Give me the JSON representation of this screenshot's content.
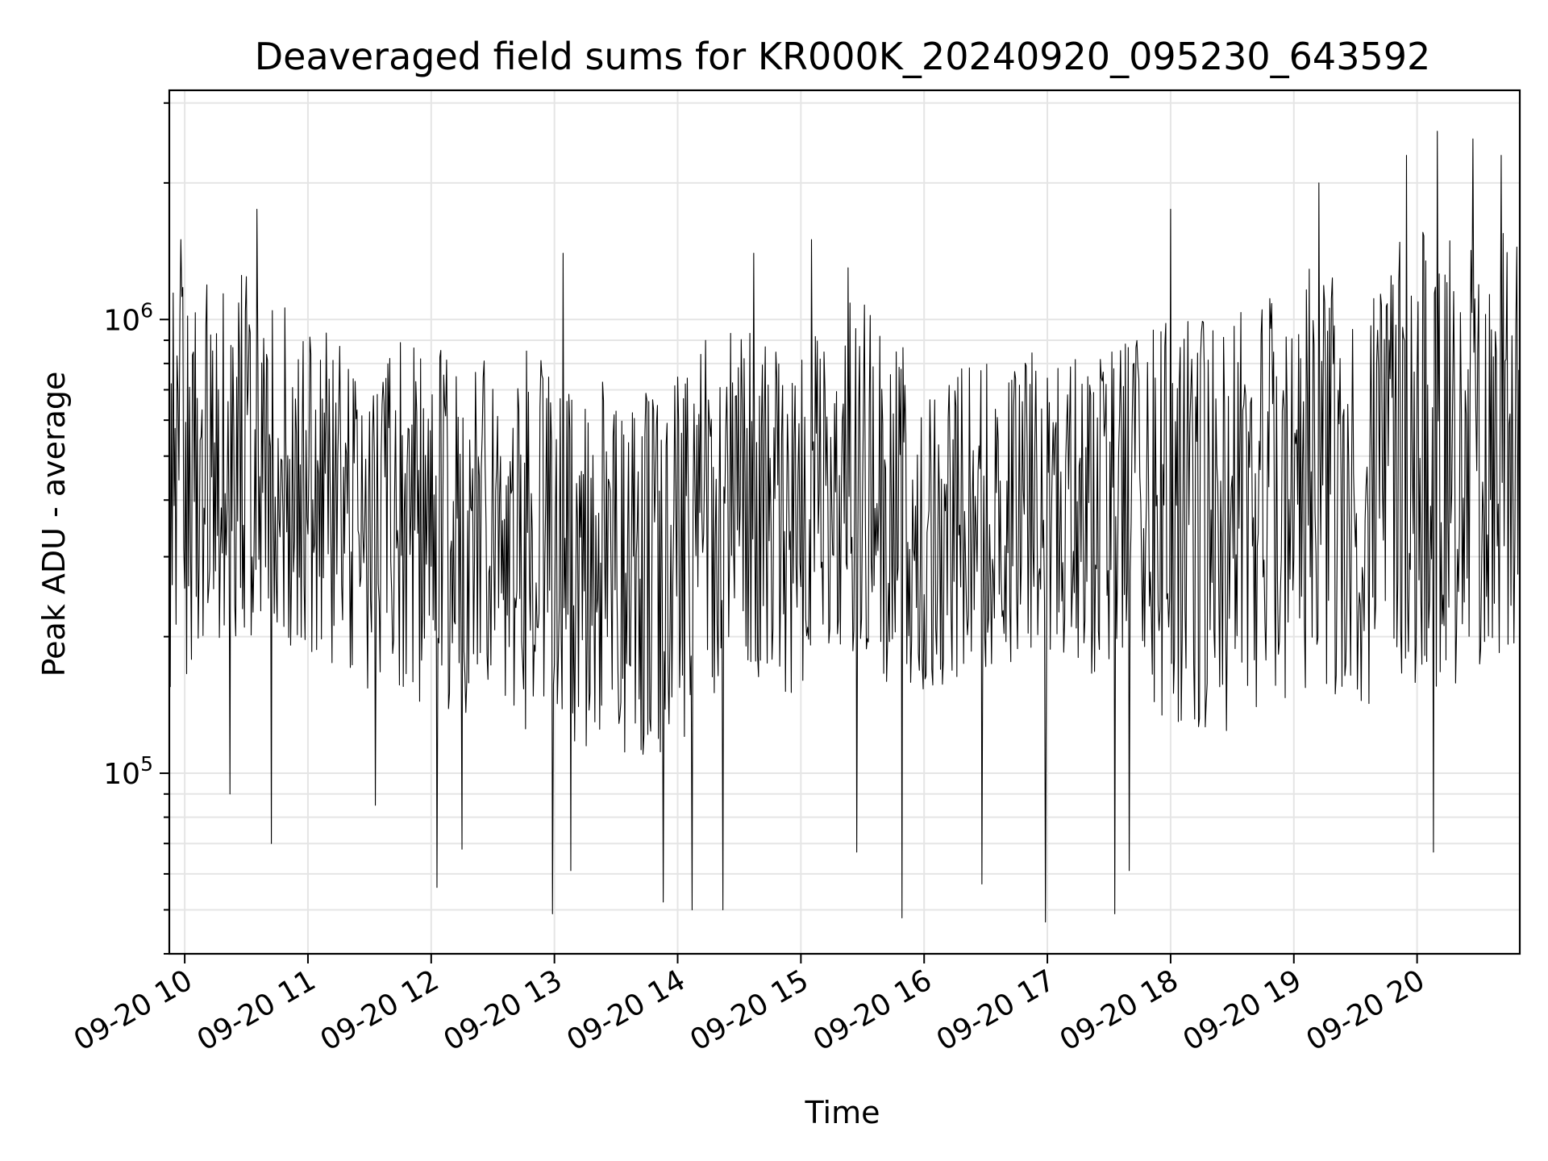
{
  "chart_data": {
    "type": "line",
    "title": "Deaveraged field sums for KR000K_20240920_095230_643592",
    "xlabel": "Time",
    "ylabel": "Peak ADU - average",
    "x_ticks": [
      "09-20 10",
      "09-20 11",
      "09-20 12",
      "09-20 13",
      "09-20 14",
      "09-20 15",
      "09-20 16",
      "09-20 17",
      "09-20 18",
      "09-20 19",
      "09-20 20"
    ],
    "y_ticks": [
      {
        "base": "10",
        "exp": "5",
        "value": 100000
      },
      {
        "base": "10",
        "exp": "6",
        "value": 1000000
      }
    ],
    "y_scale": "log",
    "ylim": [
      40000,
      3200000
    ],
    "xlim": [
      "2024-09-20 09:52:30",
      "2024-09-20 20:50:00"
    ],
    "grid": true,
    "colors": {
      "line": "#000000",
      "grid": "#e5e5e5",
      "axes": "#000000",
      "background": "#ffffff"
    },
    "series": [
      {
        "samples_per_segment": 12,
        "envelope": [
          {
            "t": "2024-09-20 09:52:30",
            "low": 150000,
            "mid": 430000,
            "high": 1200000
          },
          {
            "t": "2024-09-20 10:30:00",
            "low": 200000,
            "mid": 480000,
            "high": 1300000
          },
          {
            "t": "2024-09-20 11:00:00",
            "low": 160000,
            "mid": 400000,
            "high": 950000
          },
          {
            "t": "2024-09-20 11:30:00",
            "low": 150000,
            "mid": 430000,
            "high": 900000
          },
          {
            "t": "2024-09-20 12:00:00",
            "low": 140000,
            "mid": 380000,
            "high": 880000
          },
          {
            "t": "2024-09-20 12:30:00",
            "low": 130000,
            "mid": 330000,
            "high": 800000
          },
          {
            "t": "2024-09-20 13:00:00",
            "low": 120000,
            "mid": 320000,
            "high": 900000
          },
          {
            "t": "2024-09-20 13:30:00",
            "low": 110000,
            "mid": 300000,
            "high": 700000
          },
          {
            "t": "2024-09-20 14:00:00",
            "low": 110000,
            "mid": 300000,
            "high": 750000
          },
          {
            "t": "2024-09-20 14:30:00",
            "low": 170000,
            "mid": 470000,
            "high": 1100000
          },
          {
            "t": "2024-09-20 15:00:00",
            "low": 140000,
            "mid": 340000,
            "high": 900000
          },
          {
            "t": "2024-09-20 15:30:00",
            "low": 160000,
            "mid": 480000,
            "high": 1200000
          },
          {
            "t": "2024-09-20 16:00:00",
            "low": 150000,
            "mid": 300000,
            "high": 750000
          },
          {
            "t": "2024-09-20 16:30:00",
            "low": 170000,
            "mid": 380000,
            "high": 800000
          },
          {
            "t": "2024-09-20 17:00:00",
            "low": 180000,
            "mid": 440000,
            "high": 900000
          },
          {
            "t": "2024-09-20 17:30:00",
            "low": 150000,
            "mid": 330000,
            "high": 850000
          },
          {
            "t": "2024-09-20 18:00:00",
            "low": 130000,
            "mid": 360000,
            "high": 1000000
          },
          {
            "t": "2024-09-20 18:30:00",
            "low": 120000,
            "mid": 330000,
            "high": 1000000
          },
          {
            "t": "2024-09-20 19:00:00",
            "low": 150000,
            "mid": 500000,
            "high": 1300000
          },
          {
            "t": "2024-09-20 19:30:00",
            "low": 140000,
            "mid": 450000,
            "high": 1300000
          },
          {
            "t": "2024-09-20 20:00:00",
            "low": 150000,
            "mid": 560000,
            "high": 1600000
          },
          {
            "t": "2024-09-20 20:30:00",
            "low": 160000,
            "mid": 600000,
            "high": 1700000
          },
          {
            "t": "2024-09-20 20:50:00",
            "low": 170000,
            "mid": 550000,
            "high": 1500000
          }
        ],
        "spikes": [
          {
            "t": "2024-09-20 09:58:00",
            "value": 1500000
          },
          {
            "t": "2024-09-20 10:35:00",
            "value": 1750000
          },
          {
            "t": "2024-09-20 10:42:00",
            "value": 70000
          },
          {
            "t": "2024-09-20 10:22:00",
            "value": 90000
          },
          {
            "t": "2024-09-20 11:33:00",
            "value": 85000
          },
          {
            "t": "2024-09-20 12:03:00",
            "value": 56000
          },
          {
            "t": "2024-09-20 12:15:00",
            "value": 68000
          },
          {
            "t": "2024-09-20 12:59:00",
            "value": 49000
          },
          {
            "t": "2024-09-20 13:04:00",
            "value": 1400000
          },
          {
            "t": "2024-09-20 13:08:00",
            "value": 61000
          },
          {
            "t": "2024-09-20 13:53:00",
            "value": 52000
          },
          {
            "t": "2024-09-20 14:07:00",
            "value": 50000
          },
          {
            "t": "2024-09-20 14:22:00",
            "value": 50000
          },
          {
            "t": "2024-09-20 14:37:00",
            "value": 1400000
          },
          {
            "t": "2024-09-20 15:05:00",
            "value": 1500000
          },
          {
            "t": "2024-09-20 15:23:00",
            "value": 1300000
          },
          {
            "t": "2024-09-20 15:27:00",
            "value": 67000
          },
          {
            "t": "2024-09-20 15:49:00",
            "value": 48000
          },
          {
            "t": "2024-09-20 16:28:00",
            "value": 57000
          },
          {
            "t": "2024-09-20 16:59:00",
            "value": 47000
          },
          {
            "t": "2024-09-20 17:33:00",
            "value": 49000
          },
          {
            "t": "2024-09-20 17:40:00",
            "value": 61000
          },
          {
            "t": "2024-09-20 18:00:00",
            "value": 1750000
          },
          {
            "t": "2024-09-20 19:12:00",
            "value": 2000000
          },
          {
            "t": "2024-09-20 19:55:00",
            "value": 2300000
          },
          {
            "t": "2024-09-20 20:08:00",
            "value": 67000
          },
          {
            "t": "2024-09-20 20:10:00",
            "value": 2600000
          },
          {
            "t": "2024-09-20 20:27:00",
            "value": 2500000
          },
          {
            "t": "2024-09-20 20:41:00",
            "value": 2300000
          }
        ]
      }
    ]
  }
}
